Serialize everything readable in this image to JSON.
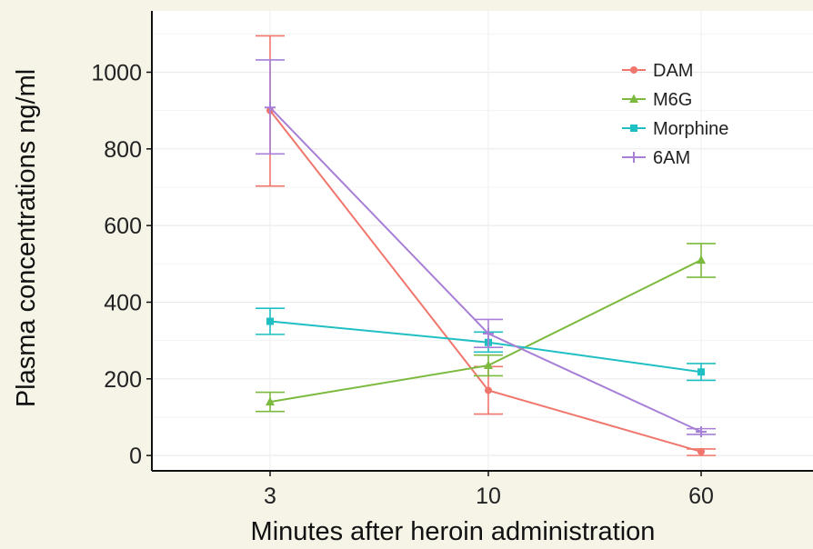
{
  "chart_data": {
    "type": "line",
    "xlabel": "Minutes after heroin administration",
    "ylabel": "Plasma concentrations ng/ml",
    "categories": [
      "3",
      "10",
      "60"
    ],
    "yticks": [
      0,
      200,
      400,
      600,
      800,
      1000
    ],
    "ylim": [
      -40,
      1160
    ],
    "grid": true,
    "legend_position": "top-right",
    "series": [
      {
        "name": "DAM",
        "color": "#f0766d",
        "marker": "circle",
        "values": [
          900,
          170,
          10
        ],
        "lower": [
          703,
          108,
          0
        ],
        "upper": [
          1095,
          232,
          17
        ]
      },
      {
        "name": "M6G",
        "color": "#7cba3f",
        "marker": "triangle",
        "values": [
          140,
          235,
          510
        ],
        "lower": [
          115,
          208,
          465
        ],
        "upper": [
          165,
          262,
          553
        ]
      },
      {
        "name": "Morphine",
        "color": "#1fbfc4",
        "marker": "square",
        "values": [
          350,
          295,
          218
        ],
        "lower": [
          316,
          270,
          196
        ],
        "upper": [
          384,
          322,
          240
        ]
      },
      {
        "name": "6AM",
        "color": "#a77fd6",
        "marker": "plus",
        "values": [
          908,
          318,
          62
        ],
        "lower": [
          787,
          282,
          55
        ],
        "upper": [
          1032,
          355,
          70
        ]
      }
    ]
  }
}
